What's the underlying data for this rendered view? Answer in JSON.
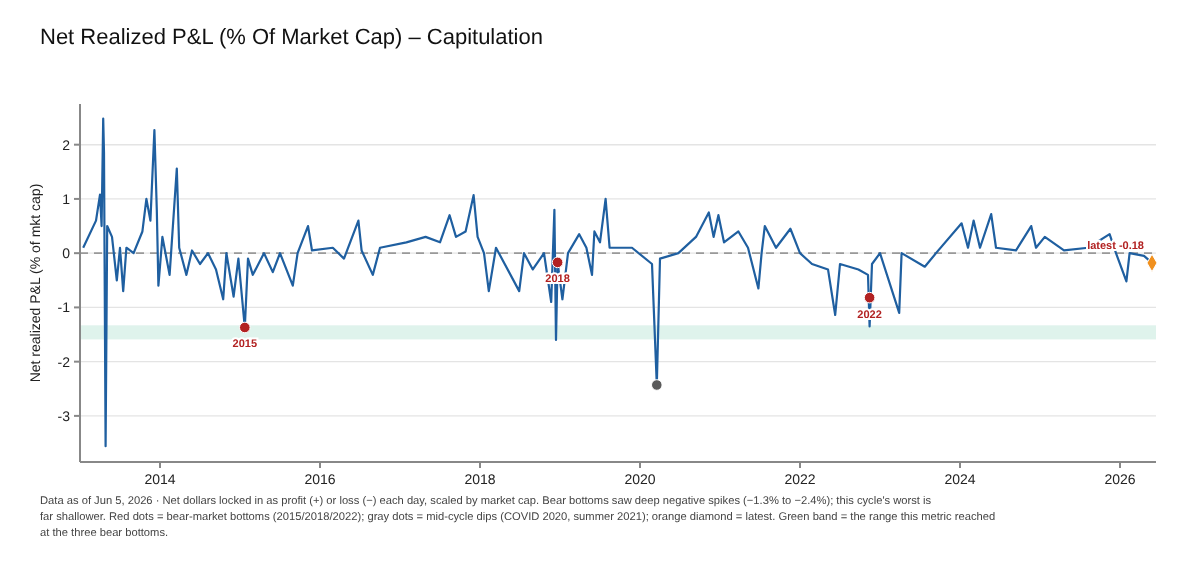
{
  "chart_data": {
    "type": "line",
    "title": "Net Realized P&L (% Of Market Cap) – Capitulation",
    "ylabel": "Net realized P&L (% of mkt cap)",
    "xlim": [
      2013.0,
      2026.45
    ],
    "xticks": [
      2014,
      2016,
      2018,
      2020,
      2022,
      2024,
      2026
    ],
    "ylim": [
      -3.85,
      2.75
    ],
    "yticks": [
      -3,
      -2,
      -1,
      0,
      1,
      2
    ],
    "grid": "y",
    "series": [
      {
        "color": "#1f5fa0",
        "marker": "none",
        "x": [
          2013.04,
          2013.2,
          2013.25,
          2013.27,
          2013.29,
          2013.3,
          2013.32,
          2013.34,
          2013.4,
          2013.46,
          2013.5,
          2013.54,
          2013.58,
          2013.67,
          2013.78,
          2013.83,
          2013.88,
          2013.93,
          2013.96,
          2013.98,
          2014.03,
          2014.12,
          2014.21,
          2014.24,
          2014.33,
          2014.4,
          2014.5,
          2014.6,
          2014.7,
          2014.79,
          2014.83,
          2014.92,
          2014.98,
          2015.06,
          2015.1,
          2015.16,
          2015.3,
          2015.41,
          2015.5,
          2015.66,
          2015.72,
          2015.85,
          2015.9,
          2016.16,
          2016.3,
          2016.48,
          2016.52,
          2016.66,
          2016.75,
          2017.08,
          2017.32,
          2017.5,
          2017.62,
          2017.7,
          2017.82,
          2017.92,
          2017.97,
          2018.05,
          2018.11,
          2018.2,
          2018.49,
          2018.55,
          2018.66,
          2018.8,
          2018.89,
          2018.93,
          2018.95,
          2018.97,
          2019.03,
          2019.1,
          2019.24,
          2019.33,
          2019.4,
          2019.43,
          2019.5,
          2019.57,
          2019.62,
          2019.9,
          2020.15,
          2020.21,
          2020.25,
          2020.48,
          2020.7,
          2020.86,
          2020.92,
          2020.98,
          2021.05,
          2021.23,
          2021.35,
          2021.48,
          2021.52,
          2021.56,
          2021.7,
          2021.88,
          2022.0,
          2022.15,
          2022.35,
          2022.44,
          2022.5,
          2022.73,
          2022.85,
          2022.87,
          2022.9,
          2023.0,
          2023.24,
          2023.27,
          2023.56,
          2023.7,
          2024.02,
          2024.1,
          2024.17,
          2024.25,
          2024.39,
          2024.45,
          2024.7,
          2024.89,
          2024.95,
          2025.06,
          2025.3,
          2025.6,
          2025.87,
          2025.95,
          2026.08,
          2026.12,
          2026.3,
          2026.4
        ],
        "values": [
          0.1,
          0.6,
          1.08,
          0.5,
          2.48,
          1.85,
          -3.56,
          0.5,
          0.3,
          -0.5,
          0.1,
          -0.7,
          0.1,
          0.0,
          0.4,
          1.0,
          0.6,
          2.27,
          0.8,
          -0.6,
          0.3,
          -0.4,
          1.56,
          0.1,
          -0.4,
          0.05,
          -0.2,
          0.0,
          -0.3,
          -0.85,
          0.0,
          -0.8,
          -0.1,
          -1.37,
          -0.1,
          -0.4,
          0.0,
          -0.35,
          0.0,
          -0.6,
          0.0,
          0.5,
          0.05,
          0.1,
          -0.1,
          0.6,
          0.05,
          -0.4,
          0.1,
          0.2,
          0.3,
          0.2,
          0.7,
          0.3,
          0.4,
          1.07,
          0.3,
          0.0,
          -0.7,
          0.1,
          -0.7,
          0.0,
          -0.3,
          0.0,
          -0.9,
          0.8,
          -1.6,
          -0.17,
          -0.85,
          0.0,
          0.35,
          0.1,
          -0.4,
          0.4,
          0.2,
          1.0,
          0.1,
          0.1,
          -0.2,
          -2.43,
          -0.1,
          0.0,
          0.3,
          0.75,
          0.3,
          0.7,
          0.2,
          0.4,
          0.1,
          -0.65,
          0.0,
          0.5,
          0.1,
          0.45,
          0.0,
          -0.2,
          -0.3,
          -1.14,
          -0.2,
          -0.3,
          -0.4,
          -1.35,
          -0.2,
          0.0,
          -1.1,
          0.0,
          -0.25,
          0.0,
          0.55,
          0.1,
          0.6,
          0.1,
          0.72,
          0.1,
          0.05,
          0.5,
          0.1,
          0.3,
          0.05,
          0.1,
          0.35,
          0.0,
          -0.52,
          0.0,
          -0.05,
          -0.18
        ]
      },
      {
        "type": "scatter",
        "color": "#b22222",
        "marker": "circle",
        "x": [
          2015.06,
          2018.97,
          2022.87
        ],
        "values": [
          -1.37,
          -0.17,
          -0.82
        ]
      },
      {
        "type": "scatter",
        "color": "#5a5a5a",
        "marker": "circle",
        "x": [
          2020.21
        ],
        "values": [
          -2.43
        ]
      },
      {
        "type": "scatter",
        "color": "#f0901e",
        "marker": "diamond",
        "x": [
          2026.4
        ],
        "values": [
          -0.18
        ]
      }
    ],
    "ref_lines": [
      {
        "axis": "y",
        "value": 0,
        "color": "#999999",
        "line_style": "dashed"
      }
    ],
    "bands": [
      {
        "axis": "y",
        "from": -1.59,
        "to": -1.33,
        "color": "#dff3ec"
      }
    ],
    "annotations": [
      {
        "text": "2015",
        "x": 2015.06,
        "y": -1.37
      },
      {
        "text": "2018",
        "x": 2018.97,
        "y": -0.17
      },
      {
        "text": "2022",
        "x": 2022.87,
        "y": -0.82
      },
      {
        "text": "latest -0.18",
        "x": 2026.4,
        "y": -0.18
      },
      "Data as of Jun 5, 2026 · Net dollars locked in as profit (+) or loss (−) each day, scaled by market cap. Bear bottoms saw deep negative spikes (−1.3% to −2.4%); this cycle's worst is far shallower. Red dots = bear-market bottoms (2015/2018/2022); gray dots = mid-cycle dips (COVID 2020, summer 2021); orange diamond = latest. Green band = the range this metric reached at the three bear bottoms."
    ]
  }
}
